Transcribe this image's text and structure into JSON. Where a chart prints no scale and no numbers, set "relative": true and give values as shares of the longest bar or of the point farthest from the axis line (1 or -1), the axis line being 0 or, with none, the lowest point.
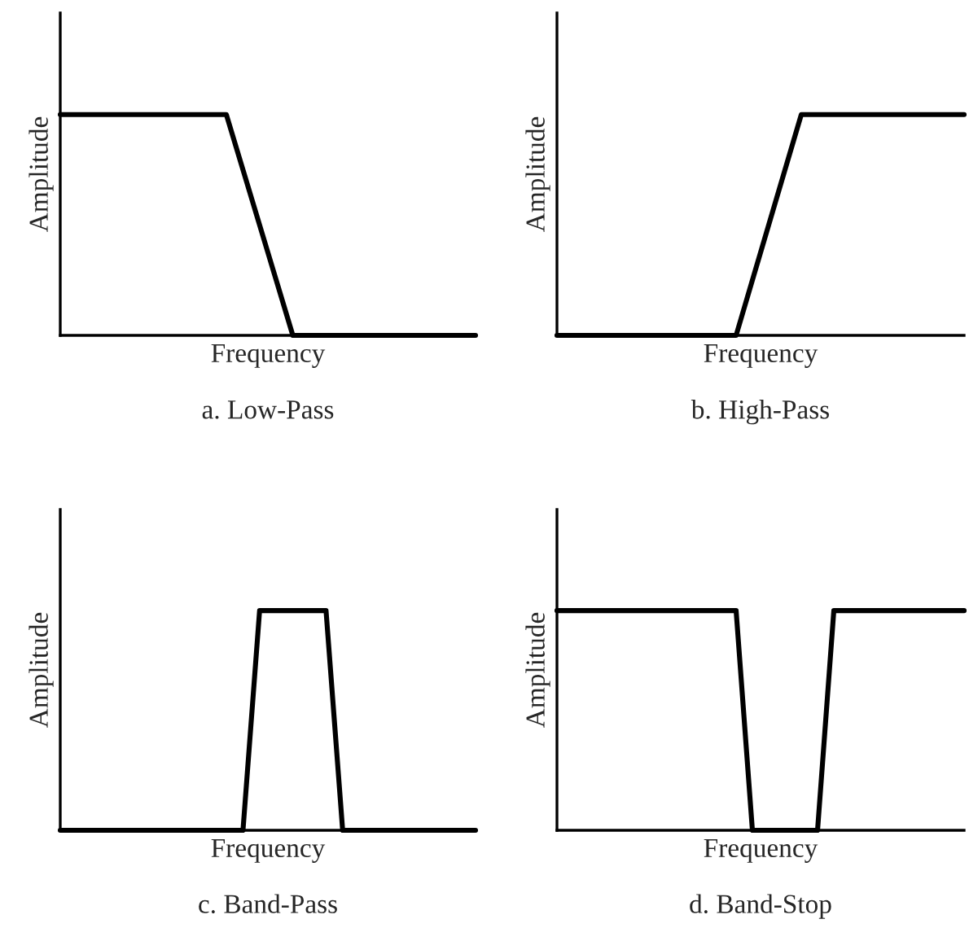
{
  "chart_data": [
    {
      "type": "line",
      "title": "a. Low-Pass",
      "xlabel": "Frequency",
      "ylabel": "Amplitude",
      "relative": true,
      "marker": "none",
      "line_style": "solid",
      "categories": [
        null,
        null,
        null,
        null,
        null,
        null,
        null,
        null,
        null,
        null,
        null,
        null,
        null,
        null,
        null,
        null,
        null,
        null,
        null,
        null,
        null,
        null,
        null,
        null,
        null,
        null
      ],
      "series": [
        {
          "color": "#000000",
          "values": [
            1,
            1,
            1,
            1,
            1,
            1,
            1,
            1,
            1,
            1,
            1,
            0.75,
            0.5,
            0.25,
            0,
            0,
            0,
            0,
            0,
            0,
            0,
            0,
            0,
            0,
            0,
            0
          ]
        }
      ]
    },
    {
      "type": "line",
      "title": "b. High-Pass",
      "xlabel": "Frequency",
      "ylabel": "Amplitude",
      "relative": true,
      "marker": "none",
      "line_style": "solid",
      "categories": [
        null,
        null,
        null,
        null,
        null,
        null,
        null,
        null,
        null,
        null,
        null,
        null,
        null,
        null,
        null,
        null,
        null,
        null,
        null,
        null,
        null,
        null,
        null,
        null,
        null,
        null
      ],
      "series": [
        {
          "color": "#000000",
          "values": [
            0,
            0,
            0,
            0,
            0,
            0,
            0,
            0,
            0,
            0,
            0,
            0,
            0.25,
            0.5,
            0.75,
            1,
            1,
            1,
            1,
            1,
            1,
            1,
            1,
            1,
            1,
            1
          ]
        }
      ]
    },
    {
      "type": "line",
      "title": "c. Band-Pass",
      "xlabel": "Frequency",
      "ylabel": "Amplitude",
      "relative": true,
      "marker": "none",
      "line_style": "solid",
      "categories": [
        null,
        null,
        null,
        null,
        null,
        null,
        null,
        null,
        null,
        null,
        null,
        null,
        null,
        null,
        null,
        null,
        null,
        null,
        null,
        null,
        null,
        null,
        null,
        null,
        null,
        null
      ],
      "series": [
        {
          "color": "#000000",
          "values": [
            0,
            0,
            0,
            0,
            0,
            0,
            0,
            0,
            0,
            0,
            0,
            0,
            1,
            1,
            1,
            1,
            1,
            0,
            0,
            0,
            0,
            0,
            0,
            0,
            0,
            0
          ]
        }
      ]
    },
    {
      "type": "line",
      "title": "d. Band-Stop",
      "xlabel": "Frequency",
      "ylabel": "Amplitude",
      "relative": true,
      "marker": "none",
      "line_style": "solid",
      "categories": [
        null,
        null,
        null,
        null,
        null,
        null,
        null,
        null,
        null,
        null,
        null,
        null,
        null,
        null,
        null,
        null,
        null,
        null,
        null,
        null,
        null,
        null,
        null,
        null,
        null,
        null
      ],
      "series": [
        {
          "color": "#000000",
          "values": [
            1,
            1,
            1,
            1,
            1,
            1,
            1,
            1,
            1,
            1,
            1,
            1,
            0,
            0,
            0,
            0,
            0,
            1,
            1,
            1,
            1,
            1,
            1,
            1,
            1,
            1
          ]
        }
      ]
    }
  ]
}
